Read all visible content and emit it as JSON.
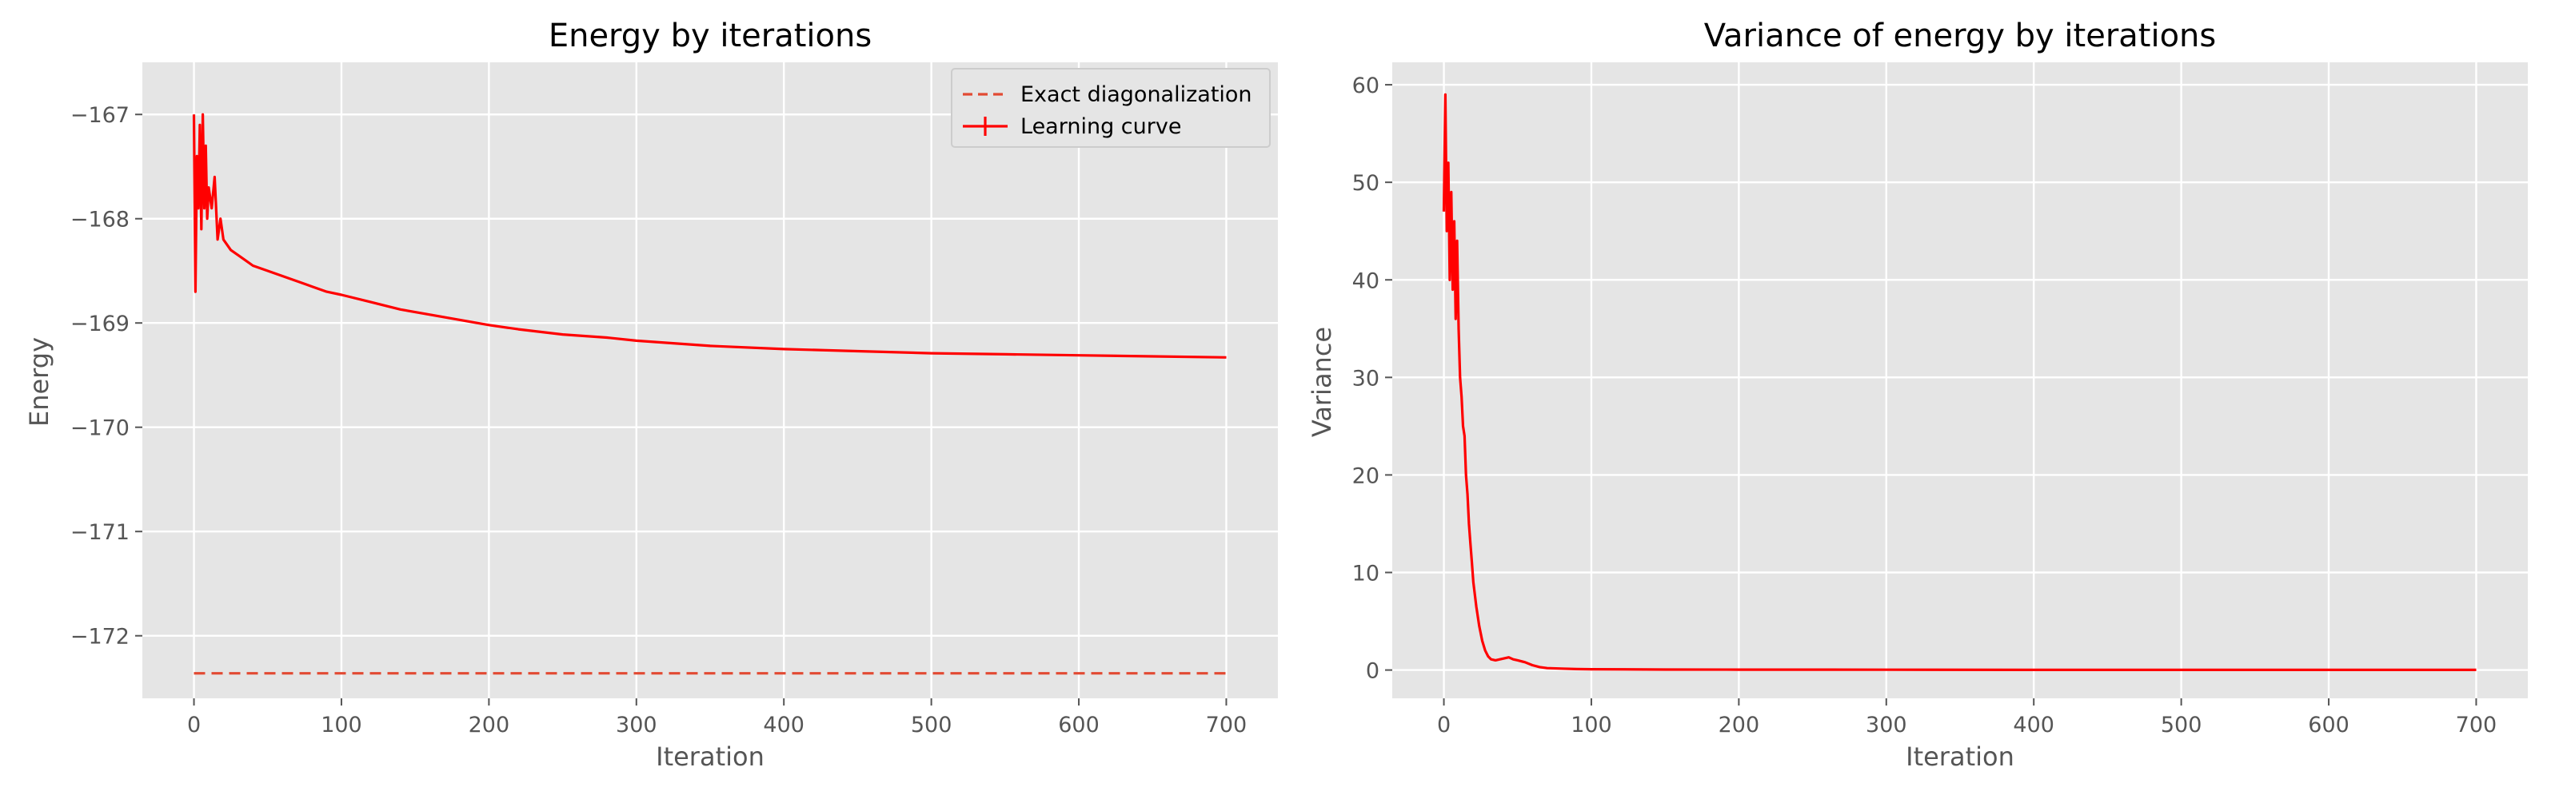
{
  "chart_data": [
    {
      "type": "line",
      "title": "Energy by iterations",
      "xlabel": "Iteration",
      "ylabel": "Energy",
      "xlim": [
        -35,
        735
      ],
      "ylim": [
        -172.6,
        -166.5
      ],
      "xticks": [
        0,
        100,
        200,
        300,
        400,
        500,
        600,
        700
      ],
      "yticks": [
        -172,
        -171,
        -170,
        -169,
        -168,
        -167
      ],
      "xtick_labels": [
        "0",
        "100",
        "200",
        "300",
        "400",
        "500",
        "600",
        "700"
      ],
      "ytick_labels": [
        "−172",
        "−171",
        "−170",
        "−169",
        "−168",
        "−167"
      ],
      "grid": true,
      "legend": {
        "location": "top-right",
        "entries": [
          "Exact diagonalization",
          "Learning curve"
        ]
      },
      "series": [
        {
          "name": "Exact diagonalization",
          "style": "dashed",
          "color": "#e24a33",
          "x": [
            0,
            700
          ],
          "y": [
            -172.36,
            -172.36
          ]
        },
        {
          "name": "Learning curve",
          "style": "solid-errorbar",
          "color": "#ff0000",
          "x": [
            0,
            1,
            2,
            3,
            4,
            5,
            6,
            7,
            8,
            9,
            10,
            12,
            14,
            16,
            18,
            20,
            25,
            30,
            35,
            40,
            50,
            60,
            70,
            80,
            90,
            100,
            120,
            140,
            160,
            180,
            200,
            220,
            250,
            280,
            300,
            350,
            400,
            450,
            500,
            550,
            600,
            650,
            700
          ],
          "y": [
            -167.0,
            -168.7,
            -167.4,
            -167.9,
            -167.1,
            -168.1,
            -167.0,
            -167.9,
            -167.3,
            -168.0,
            -167.7,
            -167.9,
            -167.6,
            -168.2,
            -168.0,
            -168.2,
            -168.3,
            -168.35,
            -168.4,
            -168.45,
            -168.5,
            -168.55,
            -168.6,
            -168.65,
            -168.7,
            -168.73,
            -168.8,
            -168.87,
            -168.92,
            -168.97,
            -169.02,
            -169.06,
            -169.11,
            -169.14,
            -169.17,
            -169.22,
            -169.25,
            -169.27,
            -169.29,
            -169.3,
            -169.31,
            -169.32,
            -169.33
          ]
        }
      ]
    },
    {
      "type": "line",
      "title": "Variance of energy by iterations",
      "xlabel": "Iteration",
      "ylabel": "Variance",
      "xlim": [
        -35,
        735
      ],
      "ylim": [
        -2.9,
        62.3
      ],
      "xticks": [
        0,
        100,
        200,
        300,
        400,
        500,
        600,
        700
      ],
      "yticks": [
        0,
        10,
        20,
        30,
        40,
        50,
        60
      ],
      "xtick_labels": [
        "0",
        "100",
        "200",
        "300",
        "400",
        "500",
        "600",
        "700"
      ],
      "ytick_labels": [
        "0",
        "10",
        "20",
        "30",
        "40",
        "50",
        "60"
      ],
      "grid": true,
      "series": [
        {
          "color": "#ff0000",
          "style": "solid",
          "x": [
            0,
            1,
            2,
            3,
            4,
            5,
            6,
            7,
            8,
            9,
            10,
            11,
            12,
            13,
            14,
            15,
            16,
            17,
            18,
            19,
            20,
            22,
            24,
            26,
            28,
            30,
            32,
            35,
            38,
            41,
            44,
            47,
            50,
            55,
            60,
            65,
            70,
            80,
            90,
            100,
            150,
            200,
            300,
            400,
            500,
            600,
            700
          ],
          "y": [
            47,
            59,
            45,
            52,
            40,
            49,
            39,
            46,
            36,
            44,
            35,
            30,
            28,
            25,
            24,
            20,
            18,
            15,
            13,
            11,
            9,
            6.5,
            4.5,
            3.0,
            2.0,
            1.4,
            1.1,
            1.0,
            1.1,
            1.2,
            1.3,
            1.1,
            1.0,
            0.8,
            0.5,
            0.3,
            0.2,
            0.15,
            0.1,
            0.08,
            0.05,
            0.04,
            0.03,
            0.02,
            0.02,
            0.02,
            0.02
          ]
        }
      ]
    }
  ]
}
